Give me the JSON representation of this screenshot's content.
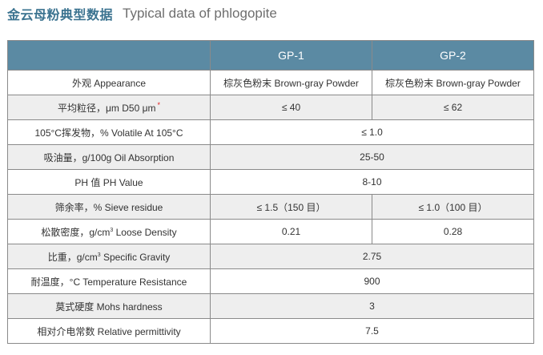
{
  "title": {
    "cn": "金云母粉典型数据",
    "en": "Typical data of phlogopite"
  },
  "table": {
    "header": [
      "",
      "GP-1",
      "GP-2"
    ],
    "rows": [
      {
        "property": "外观 Appearance",
        "gp1": "棕灰色粉末 Brown-gray Powder",
        "gp2": "棕灰色粉末 Brown-gray Powder",
        "merged": ""
      },
      {
        "property": "平均粒径，μm D50 μm",
        "star": "*",
        "gp1": "≤ 40",
        "gp2": "≤ 62",
        "merged": ""
      },
      {
        "property": "105°C挥发物，% Volatile At 105°C",
        "gp1": "",
        "gp2": "",
        "merged": "≤ 1.0"
      },
      {
        "property": "吸油量，g/100g Oil Absorption",
        "gp1": "",
        "gp2": "",
        "merged": "25-50"
      },
      {
        "property": "PH 值 PH Value",
        "gp1": "",
        "gp2": "",
        "merged": "8-10"
      },
      {
        "property": "筛余率，% Sieve residue",
        "gp1": "≤ 1.5（150 目）",
        "gp2": "≤ 1.0（100 目）",
        "merged": ""
      },
      {
        "property_pre": "松散密度，g/cm",
        "property_sup": "3",
        "property_post": " Loose Density",
        "gp1": "0.21",
        "gp2": "0.28",
        "merged": ""
      },
      {
        "property_pre": "比重，g/cm",
        "property_sup": "3",
        "property_post": " Specific Gravity",
        "gp1": "",
        "gp2": "",
        "merged": "2.75"
      },
      {
        "property": "耐温度，°C Temperature Resistance",
        "gp1": "",
        "gp2": "",
        "merged": "900"
      },
      {
        "property": "莫式硬度 Mohs hardness",
        "gp1": "",
        "gp2": "",
        "merged": "3"
      },
      {
        "property": "相对介电常数 Relative permittivity",
        "gp1": "",
        "gp2": "",
        "merged": "7.5"
      }
    ]
  },
  "colors": {
    "title": "#3b7390",
    "header_bg": "#5b8aa3",
    "alt_row_bg": "#eeeeee",
    "border": "#8a8a8a",
    "star": "#e02020"
  }
}
